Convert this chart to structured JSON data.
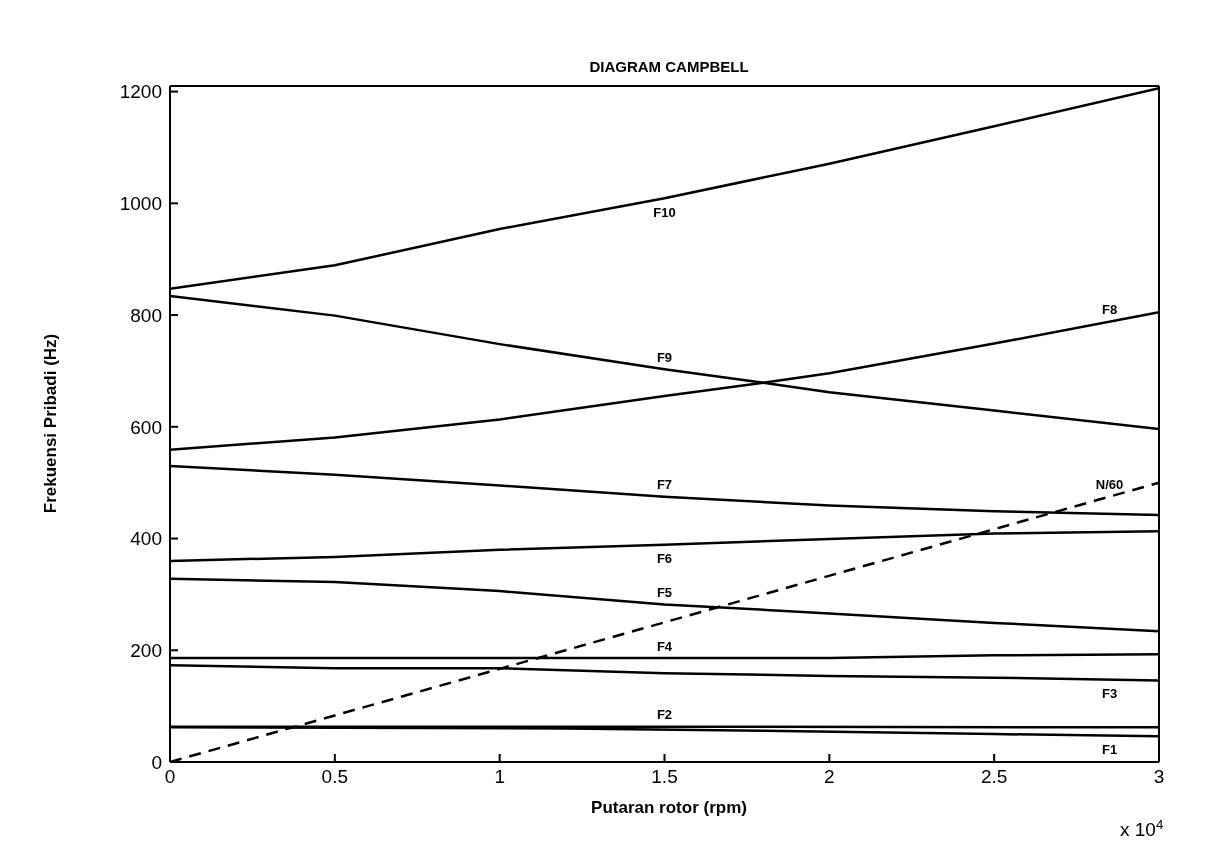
{
  "chart_data": {
    "type": "line",
    "title": "DIAGRAM CAMPBELL",
    "xlabel": "Putaran rotor (rpm)",
    "ylabel": "Frekuensi Pribadi (Hz)",
    "xlim": [
      0,
      3
    ],
    "ylim": [
      0,
      1210
    ],
    "xticks": [
      0,
      0.5,
      1,
      1.5,
      2,
      2.5,
      3
    ],
    "yticks": [
      0,
      200,
      400,
      600,
      800,
      1000,
      1200
    ],
    "grid": false,
    "marker": "none",
    "series": [
      {
        "name": "F10",
        "color": "#000000",
        "x": [
          0,
          0.5,
          1,
          1.5,
          2,
          2.5,
          3
        ],
        "values": [
          847,
          889,
          954,
          1009,
          1071,
          1138,
          1206
        ]
      },
      {
        "name": "F9",
        "color": "#000000",
        "x": [
          0,
          0.5,
          1,
          1.5,
          1.8,
          2,
          2.5,
          3
        ],
        "values": [
          834,
          799,
          748,
          703,
          679,
          662,
          629,
          596
        ]
      },
      {
        "name": "F8",
        "color": "#000000",
        "x": [
          0,
          0.5,
          1,
          1.5,
          1.8,
          2,
          2.5,
          3
        ],
        "values": [
          559,
          581,
          613,
          655,
          679,
          696,
          749,
          805
        ]
      },
      {
        "name": "F7",
        "color": "#000000",
        "x": [
          0,
          0.5,
          1,
          1.5,
          2,
          2.5,
          3
        ],
        "values": [
          530,
          514,
          495,
          475,
          459,
          449,
          442
        ]
      },
      {
        "name": "F6",
        "color": "#000000",
        "x": [
          0,
          0.5,
          1,
          1.5,
          2,
          2.5,
          3
        ],
        "values": [
          360,
          367,
          380,
          389,
          399,
          409,
          413
        ]
      },
      {
        "name": "F5",
        "color": "#000000",
        "x": [
          0,
          0.5,
          1,
          1.5,
          2,
          2.5,
          3
        ],
        "values": [
          328,
          322,
          306,
          282,
          266,
          249,
          234
        ]
      },
      {
        "name": "F4",
        "color": "#000000",
        "x": [
          0,
          1,
          1.5,
          2,
          2.5,
          3
        ],
        "values": [
          186,
          186,
          186,
          186,
          191,
          193
        ]
      },
      {
        "name": "F3",
        "color": "#000000",
        "x": [
          0,
          0.5,
          1,
          1.5,
          2,
          2.5,
          3
        ],
        "values": [
          173,
          168,
          168,
          159,
          154,
          151,
          146
        ]
      },
      {
        "name": "F2",
        "color": "#000000",
        "x": [
          0,
          1.8,
          3
        ],
        "values": [
          63,
          63,
          62
        ]
      },
      {
        "name": "F1",
        "color": "#000000",
        "x": [
          0,
          1.2,
          1.8,
          2.5,
          3
        ],
        "values": [
          62,
          60,
          56,
          50,
          46
        ]
      },
      {
        "name": "N/60",
        "color": "#000000",
        "line_style": "dashed",
        "x": [
          0,
          3
        ],
        "values": [
          0,
          500
        ]
      }
    ],
    "annotations": [
      "x 10$^{4}$"
    ]
  }
}
